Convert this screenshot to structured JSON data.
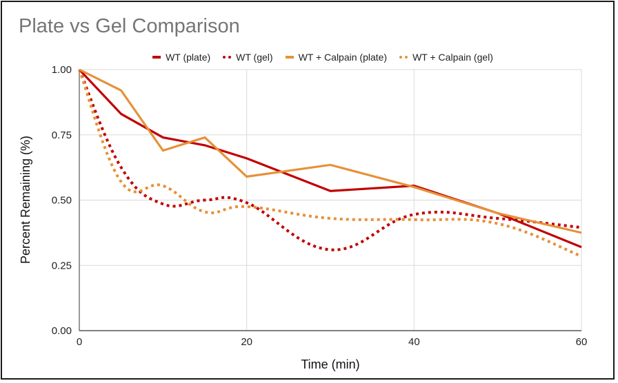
{
  "chart_data": {
    "type": "line",
    "title": "Plate vs Gel Comparison",
    "xlabel": "Time (min)",
    "ylabel": "Percent Remaining (%)",
    "xlim": [
      0,
      60
    ],
    "ylim": [
      0,
      1
    ],
    "x_ticks": [
      "0",
      "20",
      "40",
      "60"
    ],
    "x_tick_values": [
      0,
      20,
      40,
      60
    ],
    "y_ticks": [
      "0.00",
      "0.25",
      "0.50",
      "0.75",
      "1.00"
    ],
    "y_tick_values": [
      0,
      0.25,
      0.5,
      0.75,
      1.0
    ],
    "grid": true,
    "legend_position": "top",
    "x": [
      0,
      5,
      10,
      15,
      20,
      30,
      40,
      50,
      60
    ],
    "series": [
      {
        "name": "WT (plate)",
        "color": "#c00000",
        "style": "solid",
        "values": [
          1.0,
          0.83,
          0.74,
          0.71,
          0.66,
          0.535,
          0.555,
          0.45,
          0.32
        ]
      },
      {
        "name": "WT (gel)",
        "color": "#c00000",
        "style": "dotted",
        "values": [
          1.0,
          0.625,
          0.485,
          0.5,
          0.49,
          0.31,
          0.445,
          0.43,
          0.395
        ]
      },
      {
        "name": "WT + Calpain (plate)",
        "color": "#e69138",
        "style": "solid",
        "values": [
          1.0,
          0.92,
          0.69,
          0.74,
          0.59,
          0.635,
          0.55,
          0.45,
          0.375
        ]
      },
      {
        "name": "WT + Calpain (gel)",
        "color": "#e69138",
        "style": "dotted",
        "values": [
          1.0,
          0.57,
          0.555,
          0.455,
          0.475,
          0.43,
          0.425,
          0.41,
          0.285
        ]
      }
    ]
  }
}
